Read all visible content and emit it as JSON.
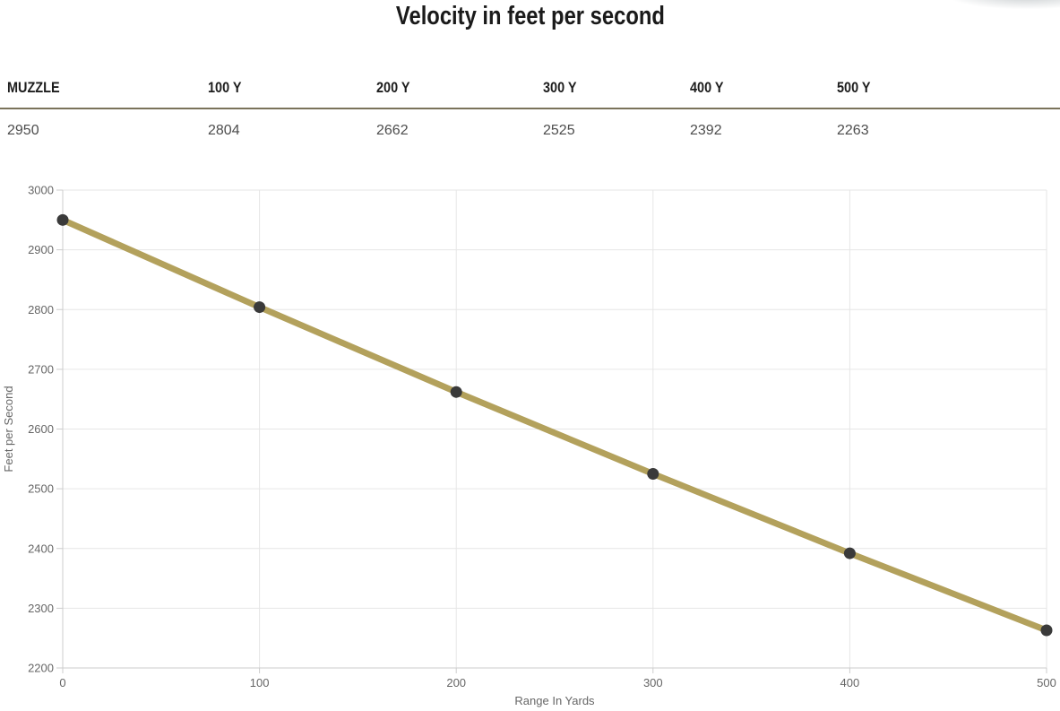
{
  "page": {
    "title": "Velocity in feet per second"
  },
  "table": {
    "headers": [
      "MUZZLE",
      "100 Y",
      "200 Y",
      "300 Y",
      "400 Y",
      "500 Y"
    ],
    "values": [
      "2950",
      "2804",
      "2662",
      "2525",
      "2392",
      "2263"
    ]
  },
  "chart_data": {
    "type": "line",
    "title": "Velocity in feet per second",
    "xlabel": "Range In Yards",
    "ylabel": "Feet per Second",
    "x": [
      0,
      100,
      200,
      300,
      400,
      500
    ],
    "y": [
      2950,
      2804,
      2662,
      2525,
      2392,
      2263
    ],
    "series": [
      {
        "name": "Velocity",
        "values": [
          2950,
          2804,
          2662,
          2525,
          2392,
          2263
        ]
      }
    ],
    "xlim": [
      0,
      500
    ],
    "ylim": [
      2200,
      3000
    ],
    "x_ticks": [
      0,
      100,
      200,
      300,
      400,
      500
    ],
    "y_ticks": [
      2200,
      2300,
      2400,
      2500,
      2600,
      2700,
      2800,
      2900,
      3000
    ],
    "grid": true,
    "legend": "none"
  },
  "colors": {
    "line": "#b3a15c",
    "marker": "#3a3a3a",
    "gridline": "#e6e6e6",
    "axis_line": "#cccccc",
    "tick_mark": "#cccccc",
    "axis_text": "#666666",
    "separator": "#7a735a",
    "title_text": "#1a1a1a",
    "header_text": "#1d1d1d",
    "value_text": "#4d4d4d"
  }
}
